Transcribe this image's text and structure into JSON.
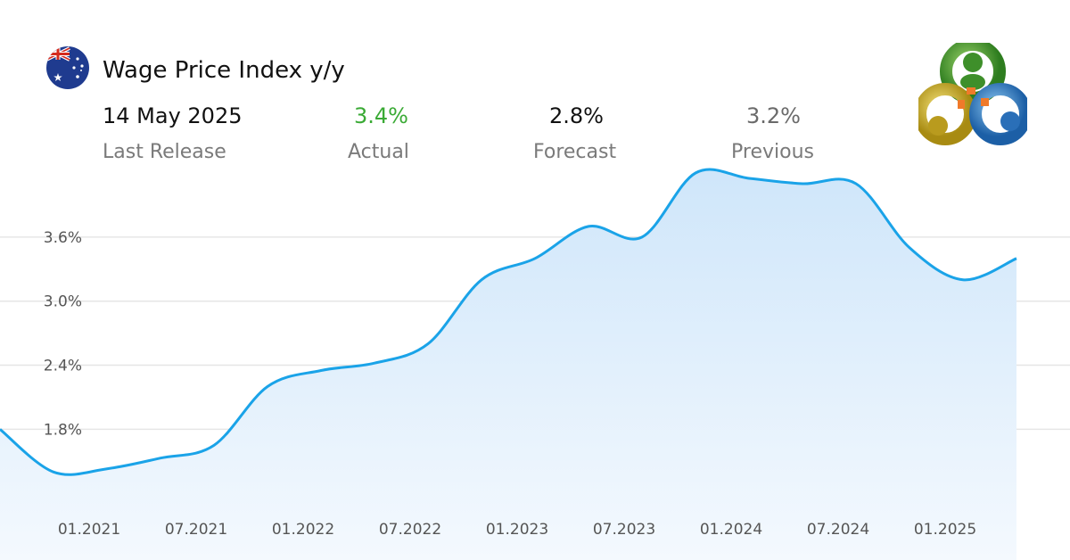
{
  "header": {
    "title": "Wage Price Index y/y",
    "flag_icon": "australia-flag-icon",
    "logo_icon": "metatrader-logo-icon"
  },
  "stats": {
    "last_release": {
      "value": "14 May 2025",
      "label": "Last Release"
    },
    "actual": {
      "value": "3.4%",
      "label": "Actual",
      "color": "#3aaa35"
    },
    "forecast": {
      "value": "2.8%",
      "label": "Forecast"
    },
    "previous": {
      "value": "3.2%",
      "label": "Previous"
    }
  },
  "chart_data": {
    "type": "area",
    "line_color": "#1aa3e8",
    "fill_color": "#d6eafb",
    "grid": true,
    "x_ticks": [
      "01.2021",
      "07.2021",
      "01.2022",
      "07.2022",
      "01.2023",
      "07.2023",
      "01.2024",
      "07.2024",
      "01.2025"
    ],
    "y_ticks": [
      "1.8%",
      "2.4%",
      "3.0%",
      "3.6%"
    ],
    "y_tick_values": [
      1.8,
      2.4,
      3.0,
      3.6
    ],
    "ylim": [
      1.06,
      4.15
    ],
    "xlim": [
      "2020-08",
      "2025-08"
    ],
    "points": [
      {
        "x": "2020-08",
        "y": 1.8
      },
      {
        "x": "2020-11",
        "y": 1.4
      },
      {
        "x": "2021-02",
        "y": 1.43
      },
      {
        "x": "2021-05",
        "y": 1.53
      },
      {
        "x": "2021-08",
        "y": 1.65
      },
      {
        "x": "2021-11",
        "y": 2.2
      },
      {
        "x": "2022-02",
        "y": 2.35
      },
      {
        "x": "2022-05",
        "y": 2.42
      },
      {
        "x": "2022-08",
        "y": 2.6
      },
      {
        "x": "2022-11",
        "y": 3.2
      },
      {
        "x": "2023-02",
        "y": 3.4
      },
      {
        "x": "2023-05",
        "y": 3.7
      },
      {
        "x": "2023-08",
        "y": 3.6
      },
      {
        "x": "2023-11",
        "y": 4.2
      },
      {
        "x": "2024-02",
        "y": 4.15
      },
      {
        "x": "2024-05",
        "y": 4.1
      },
      {
        "x": "2024-08",
        "y": 4.1
      },
      {
        "x": "2024-11",
        "y": 3.5
      },
      {
        "x": "2025-02",
        "y": 3.2
      },
      {
        "x": "2025-05",
        "y": 3.4
      }
    ]
  }
}
